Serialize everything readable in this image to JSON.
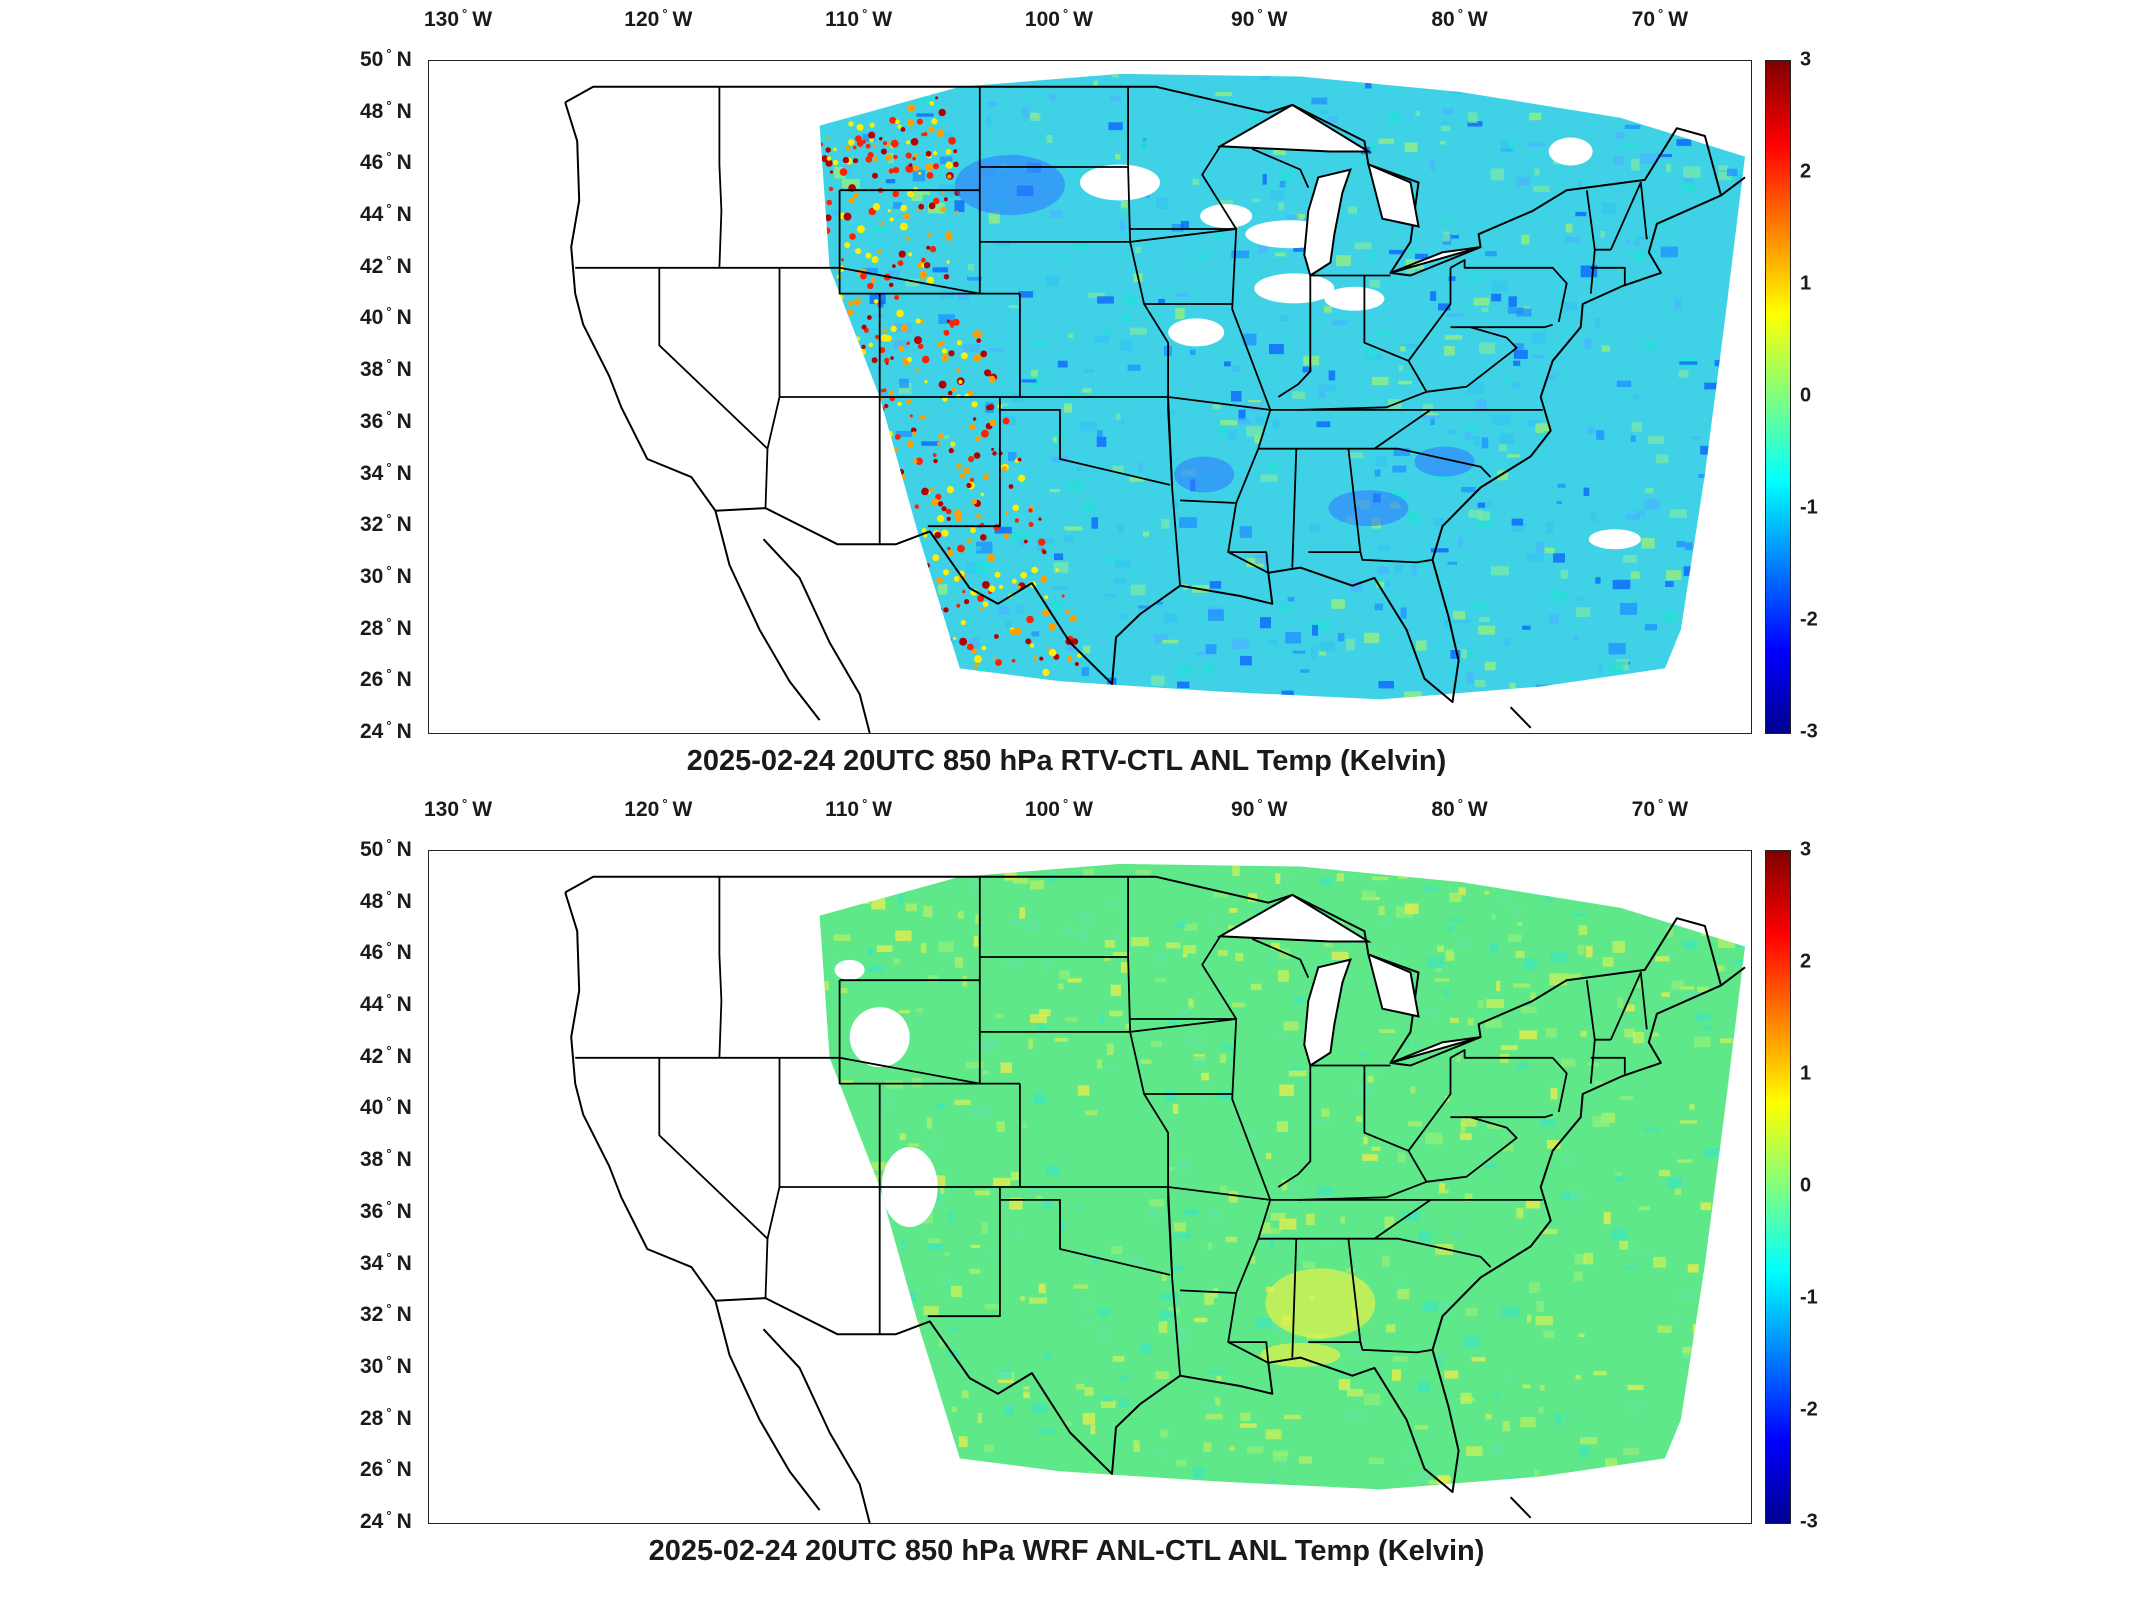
{
  "colorbar": {
    "ticks": [
      "3",
      "2",
      "1",
      "0",
      "-1",
      "-2",
      "-3"
    ],
    "colors": [
      "#00008f",
      "#0000ff",
      "#0080ff",
      "#00ffff",
      "#80ff80",
      "#ffff00",
      "#ff8000",
      "#ff0000",
      "#800000"
    ]
  },
  "axes": {
    "lon_labels": [
      "130",
      "120",
      "110",
      "100",
      "90",
      "80",
      "70"
    ],
    "lon_suffix": "W",
    "lat_labels": [
      "50",
      "48",
      "46",
      "44",
      "42",
      "40",
      "38",
      "36",
      "34",
      "32",
      "30",
      "28",
      "26",
      "24"
    ],
    "lat_suffix": "N",
    "lon_range": [
      -131.5,
      -65.5
    ],
    "lat_range": [
      24,
      50
    ]
  },
  "panels": [
    {
      "title": "2025-02-24 20UTC 850 hPa RTV-CTL ANL Temp (Kelvin)",
      "field_tone": "cyan-blue",
      "fill": "#3fd2e6"
    },
    {
      "title": "2025-02-24 20UTC 850 hPa WRF ANL-CTL ANL Temp (Kelvin)",
      "field_tone": "green-yellow",
      "fill": "#5fe88a"
    }
  ]
}
